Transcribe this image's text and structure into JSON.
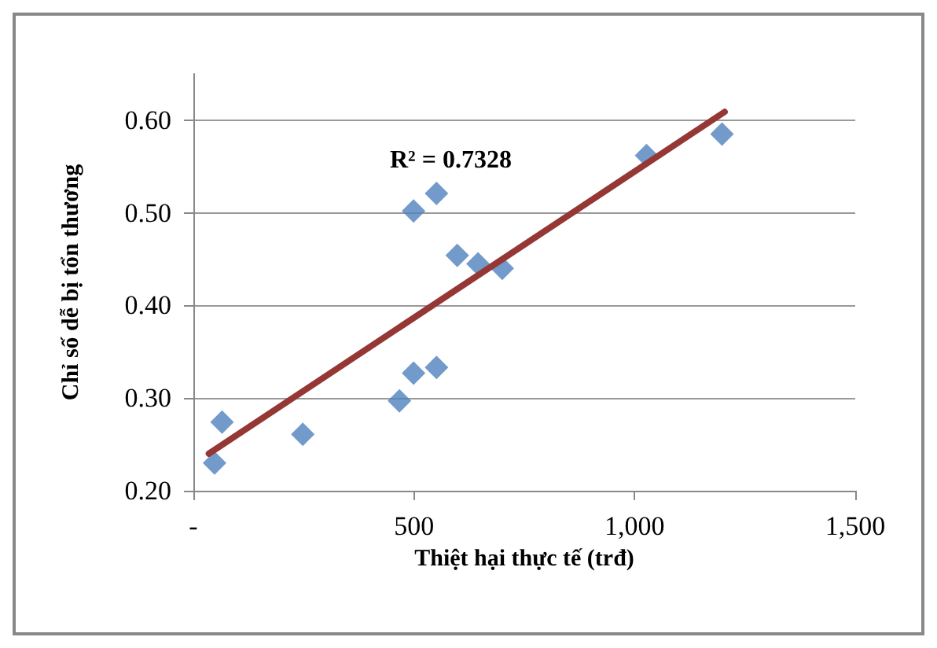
{
  "chart_data": {
    "type": "scatter",
    "xlabel": "Thiệt hại thực tế (trđ)",
    "ylabel": "Chỉ số dễ bị tổn thương",
    "annotations": [
      "R² = 0.7328"
    ],
    "series": [
      {
        "color": "#4f81bd",
        "marker": "diamond",
        "x": [
          48,
          65,
          248,
          467,
          499,
          551,
          499,
          551,
          598,
          645,
          700,
          1027,
          1198
        ],
        "values": [
          0.23,
          0.274,
          0.261,
          0.297,
          0.327,
          0.333,
          0.502,
          0.521,
          0.454,
          0.445,
          0.44,
          0.562,
          0.585
        ]
      },
      {
        "type": "line",
        "color": "#953735",
        "marker": "none",
        "x": [
          35,
          1204
        ],
        "values": [
          0.24,
          0.609
        ]
      }
    ],
    "xlim": [
      0,
      1500
    ],
    "xticks": [
      {
        "value": 0,
        "label": "-"
      },
      500,
      {
        "value": 1000,
        "label": "1,000"
      },
      {
        "value": 1500,
        "label": "1,500"
      }
    ],
    "ylim": [
      0.2,
      0.65
    ],
    "yticks": [
      {
        "value": 0.2,
        "label": "0.20"
      },
      {
        "value": 0.3,
        "label": "0.30"
      },
      {
        "value": 0.4,
        "label": "0.40"
      },
      {
        "value": 0.5,
        "label": "0.50"
      },
      {
        "value": 0.6,
        "label": "0.60"
      }
    ],
    "grid": "y"
  }
}
